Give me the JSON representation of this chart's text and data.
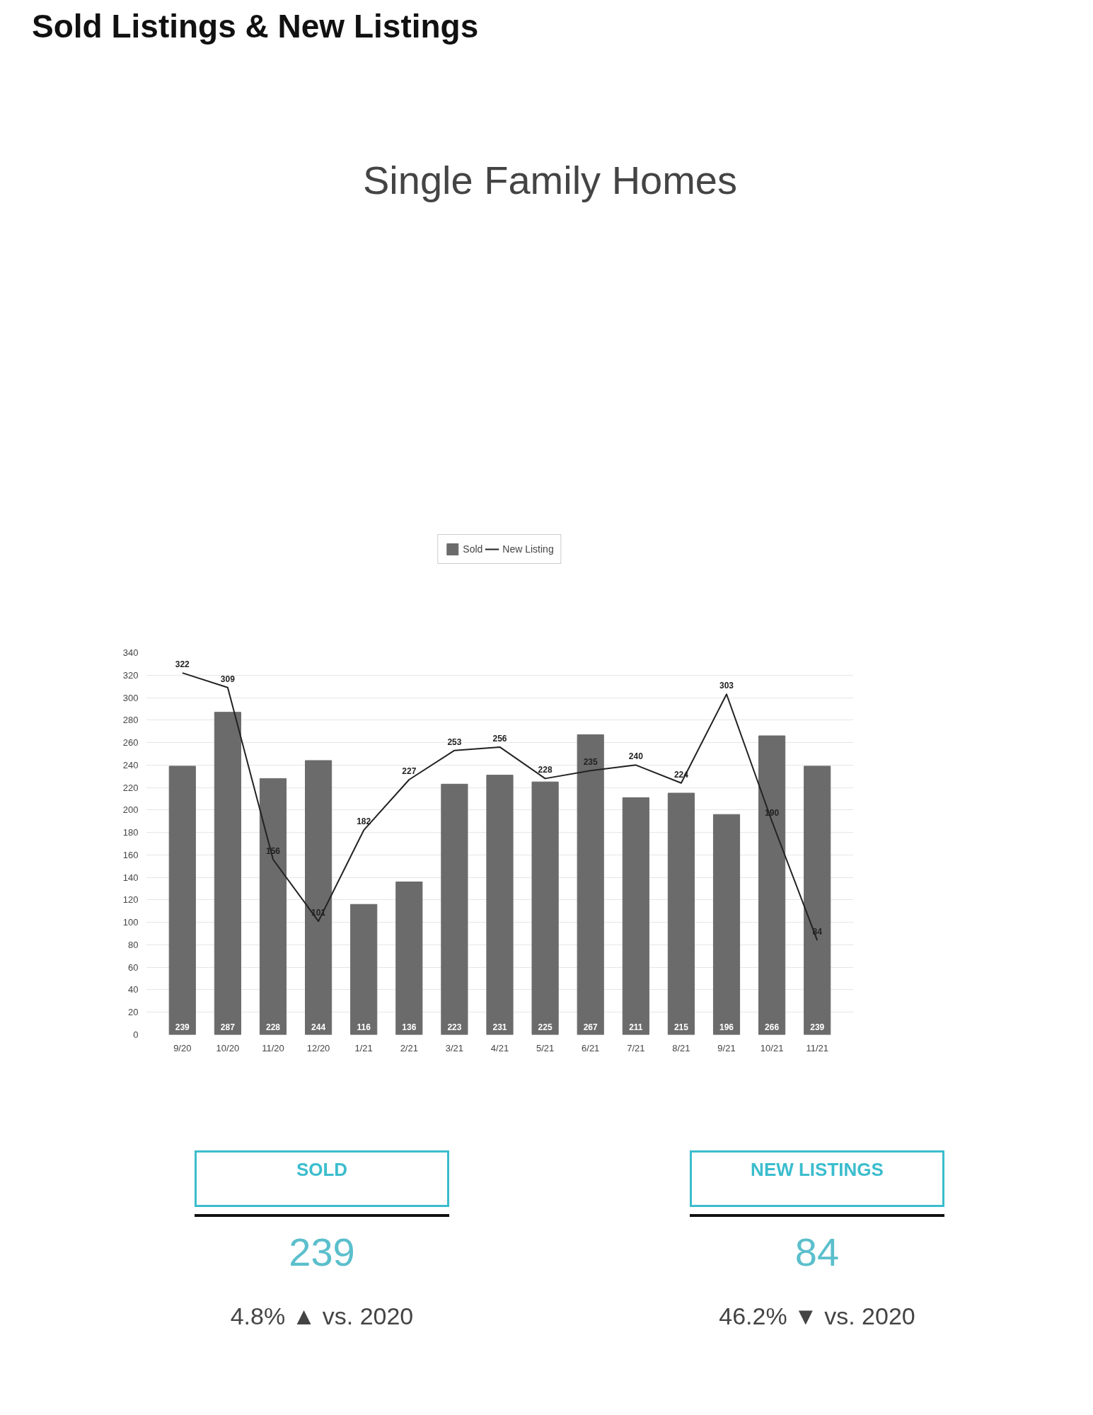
{
  "chart_data": {
    "type": "bar",
    "title": "Sold Listings & New Listings",
    "subtitle": "Single Family Homes",
    "categories": [
      "9/20",
      "10/20",
      "11/20",
      "12/20",
      "1/21",
      "2/21",
      "3/21",
      "4/21",
      "5/21",
      "6/21",
      "7/21",
      "8/21",
      "9/21",
      "10/21",
      "11/21"
    ],
    "series": [
      {
        "name": "Sold",
        "color": "#6b6b6b",
        "values": [
          239,
          287,
          228,
          244,
          116,
          136,
          223,
          231,
          225,
          267,
          211,
          215,
          196,
          266,
          239
        ]
      },
      {
        "name": "New Listing",
        "type": "line",
        "color": "#222222",
        "values": [
          322,
          309,
          156,
          101,
          182,
          227,
          253,
          256,
          228,
          235,
          240,
          224,
          303,
          190,
          84
        ]
      }
    ],
    "ylim": [
      0,
      340
    ],
    "yticks": [
      0,
      20,
      40,
      60,
      80,
      100,
      120,
      140,
      160,
      180,
      200,
      220,
      240,
      260,
      280,
      300,
      320,
      340
    ],
    "grid": "y",
    "legend": "top",
    "data_labels": true,
    "marker": "none",
    "line_style": "solid",
    "annotations": [
      "SOLD",
      "239",
      "4.8% ▲ vs. 2020",
      "NEW LISTINGS",
      "84",
      "46.2% ▼ vs. 2020"
    ]
  }
}
